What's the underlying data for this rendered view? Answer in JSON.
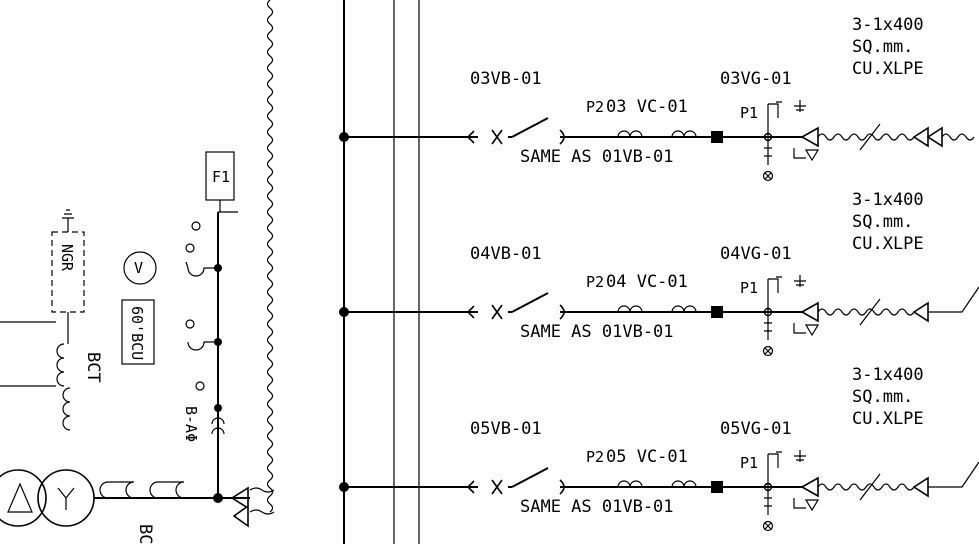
{
  "feeders": [
    {
      "breaker_tag": "03VB-01",
      "cable_tag": "03VG-01",
      "ct_tag": "03 VC-01",
      "p2": "P2",
      "p1": "P1",
      "same_as": "SAME AS 01VB-01",
      "cable_spec": [
        "3-1x400",
        "SQ.mm.",
        "CU.XLPE"
      ]
    },
    {
      "breaker_tag": "04VB-01",
      "cable_tag": "04VG-01",
      "ct_tag": "04 VC-01",
      "p2": "P2",
      "p1": "P1",
      "same_as": "SAME AS 01VB-01",
      "cable_spec": [
        "3-1x400",
        "SQ.mm.",
        "CU.XLPE"
      ]
    },
    {
      "breaker_tag": "05VB-01",
      "cable_tag": "05VG-01",
      "ct_tag": "05 VC-01",
      "p2": "P2",
      "p1": "P1",
      "same_as": "SAME AS 01VB-01",
      "cable_spec": [
        "3-1x400",
        "SQ.mm.",
        "CU.XLPE"
      ]
    }
  ],
  "left": {
    "ngr": "NGR",
    "bct": "BCT",
    "bcu": "60'BCU",
    "phase": "B-AΦ",
    "volt_symbol": "V",
    "box_label": "F1",
    "bottom_fragment": "BC"
  }
}
